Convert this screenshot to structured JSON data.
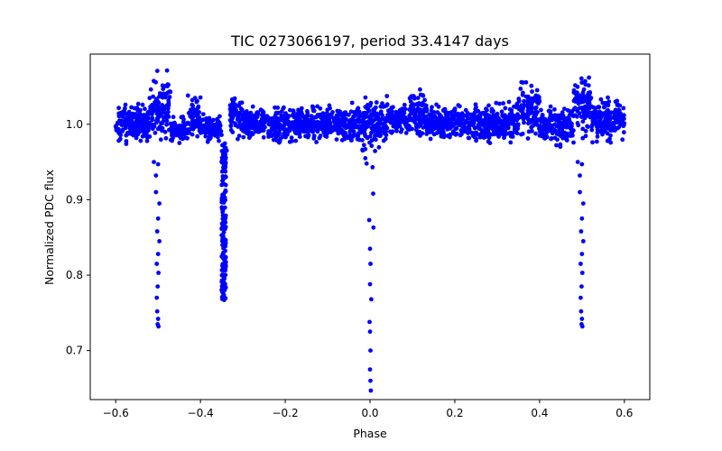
{
  "chart_data": {
    "type": "scatter",
    "title": "TIC 0273066197, period 33.4147 days",
    "xlabel": "Phase",
    "ylabel": "Normalized PDC flux",
    "xlim": [
      -0.66,
      0.66
    ],
    "ylim": [
      0.635,
      1.093
    ],
    "grid": false,
    "legend": "none",
    "marker_color": "#0000ff",
    "x_ticks": [
      {
        "value": -0.6,
        "label": "−0.6"
      },
      {
        "value": -0.4,
        "label": "−0.4"
      },
      {
        "value": -0.2,
        "label": "−0.2"
      },
      {
        "value": 0.0,
        "label": "0.0"
      },
      {
        "value": 0.2,
        "label": "0.2"
      },
      {
        "value": 0.4,
        "label": "0.4"
      },
      {
        "value": 0.6,
        "label": "0.6"
      }
    ],
    "y_ticks": [
      {
        "value": 0.7,
        "label": "0.7"
      },
      {
        "value": 0.8,
        "label": "0.8"
      },
      {
        "value": 0.9,
        "label": "0.9"
      },
      {
        "value": 1.0,
        "label": "1.0"
      }
    ],
    "baseline": {
      "x_range": [
        -0.6,
        0.6
      ],
      "flux_center": 1.0,
      "band_segments": [
        {
          "x": [
            -0.6,
            -0.52
          ],
          "y": [
            0.97,
            1.03
          ]
        },
        {
          "x": [
            -0.52,
            -0.47
          ],
          "y": [
            0.975,
            1.072
          ]
        },
        {
          "x": [
            -0.47,
            -0.43
          ],
          "y": [
            0.975,
            1.01
          ]
        },
        {
          "x": [
            -0.43,
            -0.4
          ],
          "y": [
            0.975,
            1.04
          ]
        },
        {
          "x": [
            -0.4,
            -0.35
          ],
          "y": [
            0.975,
            1.015
          ]
        },
        {
          "x": [
            -0.33,
            -0.3
          ],
          "y": [
            0.98,
            1.04
          ]
        },
        {
          "x": [
            -0.3,
            -0.08
          ],
          "y": [
            0.975,
            1.025
          ]
        },
        {
          "x": [
            -0.08,
            -0.02
          ],
          "y": [
            0.97,
            1.03
          ]
        },
        {
          "x": [
            -0.02,
            0.04
          ],
          "y": [
            0.96,
            1.045
          ]
        },
        {
          "x": [
            0.04,
            0.09
          ],
          "y": [
            0.985,
            1.03
          ]
        },
        {
          "x": [
            0.09,
            0.13
          ],
          "y": [
            0.98,
            1.053
          ]
        },
        {
          "x": [
            0.13,
            0.35
          ],
          "y": [
            0.975,
            1.03
          ]
        },
        {
          "x": [
            0.35,
            0.4
          ],
          "y": [
            0.98,
            1.06
          ]
        },
        {
          "x": [
            0.4,
            0.48
          ],
          "y": [
            0.97,
            1.025
          ]
        },
        {
          "x": [
            0.48,
            0.52
          ],
          "y": [
            0.975,
            1.072
          ]
        },
        {
          "x": [
            0.52,
            0.6
          ],
          "y": [
            0.975,
            1.04
          ]
        }
      ]
    },
    "eclipses": [
      {
        "name": "primary eclipse",
        "x_center": 0.0,
        "points": [
          {
            "x": -0.011,
            "y": 0.955
          },
          {
            "x": -0.008,
            "y": 0.948
          },
          {
            "x": 0.006,
            "y": 0.943
          },
          {
            "x": 0.0075,
            "y": 0.908
          },
          {
            "x": -0.002,
            "y": 0.873
          },
          {
            "x": 0.008,
            "y": 0.863
          },
          {
            "x": 0.0,
            "y": 0.835
          },
          {
            "x": 0.001,
            "y": 0.815
          },
          {
            "x": 0.0,
            "y": 0.788
          },
          {
            "x": 0.003,
            "y": 0.768
          },
          {
            "x": -0.001,
            "y": 0.738
          },
          {
            "x": 0.0,
            "y": 0.725
          },
          {
            "x": 0.001,
            "y": 0.7
          },
          {
            "x": 0.0,
            "y": 0.675
          },
          {
            "x": 0.001,
            "y": 0.66
          },
          {
            "x": 0.002,
            "y": 0.647
          }
        ]
      },
      {
        "name": "primary eclipse",
        "x_center": -0.5,
        "points": [
          {
            "x": -0.51,
            "y": 0.95
          },
          {
            "x": -0.5,
            "y": 0.947
          },
          {
            "x": -0.505,
            "y": 0.932
          },
          {
            "x": -0.505,
            "y": 0.91
          },
          {
            "x": -0.497,
            "y": 0.895
          },
          {
            "x": -0.5,
            "y": 0.875
          },
          {
            "x": -0.502,
            "y": 0.858
          },
          {
            "x": -0.497,
            "y": 0.845
          },
          {
            "x": -0.5,
            "y": 0.828
          },
          {
            "x": -0.503,
            "y": 0.815
          },
          {
            "x": -0.499,
            "y": 0.803
          },
          {
            "x": -0.501,
            "y": 0.785
          },
          {
            "x": -0.503,
            "y": 0.77
          },
          {
            "x": -0.502,
            "y": 0.752
          },
          {
            "x": -0.5,
            "y": 0.742
          },
          {
            "x": -0.501,
            "y": 0.735
          },
          {
            "x": -0.499,
            "y": 0.732
          }
        ]
      },
      {
        "name": "primary eclipse",
        "x_center": 0.5,
        "points": [
          {
            "x": 0.49,
            "y": 0.95
          },
          {
            "x": 0.5,
            "y": 0.947
          },
          {
            "x": 0.495,
            "y": 0.932
          },
          {
            "x": 0.495,
            "y": 0.91
          },
          {
            "x": 0.503,
            "y": 0.895
          },
          {
            "x": 0.5,
            "y": 0.875
          },
          {
            "x": 0.498,
            "y": 0.858
          },
          {
            "x": 0.503,
            "y": 0.845
          },
          {
            "x": 0.5,
            "y": 0.828
          },
          {
            "x": 0.497,
            "y": 0.815
          },
          {
            "x": 0.501,
            "y": 0.803
          },
          {
            "x": 0.499,
            "y": 0.785
          },
          {
            "x": 0.497,
            "y": 0.77
          },
          {
            "x": 0.498,
            "y": 0.752
          },
          {
            "x": 0.5,
            "y": 0.742
          },
          {
            "x": 0.499,
            "y": 0.735
          },
          {
            "x": 0.501,
            "y": 0.732
          }
        ]
      },
      {
        "name": "secondary eclipse",
        "x_center": -0.345,
        "dense_column": {
          "x_range": [
            -0.35,
            -0.34
          ],
          "y_range": [
            0.767,
            0.975
          ]
        },
        "points": [
          {
            "x": -0.344,
            "y": 0.767
          },
          {
            "x": -0.346,
            "y": 0.772
          },
          {
            "x": -0.343,
            "y": 0.78
          },
          {
            "x": -0.347,
            "y": 0.79
          },
          {
            "x": -0.342,
            "y": 0.81
          },
          {
            "x": -0.348,
            "y": 0.84
          },
          {
            "x": -0.341,
            "y": 0.87
          },
          {
            "x": -0.349,
            "y": 0.9
          },
          {
            "x": -0.34,
            "y": 0.93
          },
          {
            "x": -0.35,
            "y": 0.95
          },
          {
            "x": -0.338,
            "y": 0.965
          }
        ]
      }
    ]
  }
}
